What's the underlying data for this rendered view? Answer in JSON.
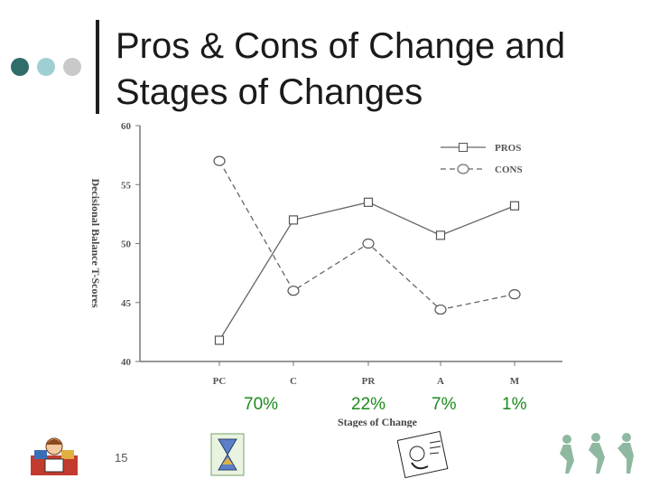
{
  "slide": {
    "title_line1": "Pros & Cons of Change and",
    "title_line2": "Stages of Changes",
    "slide_number": "15"
  },
  "colors": {
    "dot1": "#2e6d6a",
    "dot2": "#9dcfd3",
    "dot3": "#c9c9c9",
    "pct": "#1a8a1a"
  },
  "percentages": [
    "70%",
    "22%",
    "7%",
    "1%"
  ],
  "chart_data": {
    "type": "line",
    "title": "",
    "xlabel": "Stages of Change",
    "ylabel": "Decisional Balance T-Scores",
    "categories": [
      "PC",
      "C",
      "PR",
      "A",
      "M"
    ],
    "ylim": [
      40,
      60
    ],
    "yticks": [
      40,
      45,
      50,
      55,
      60
    ],
    "legend_position": "top-right",
    "series": [
      {
        "name": "PROS",
        "marker": "square",
        "dash": "solid",
        "values": [
          41.8,
          52.0,
          53.5,
          50.7,
          53.2
        ]
      },
      {
        "name": "CONS",
        "marker": "circle",
        "dash": "dashed",
        "values": [
          57.0,
          46.0,
          50.0,
          44.4,
          45.7
        ]
      }
    ]
  }
}
